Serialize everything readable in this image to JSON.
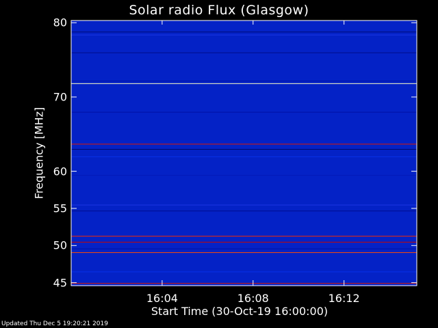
{
  "chart_data": {
    "type": "heatmap",
    "title": "Solar radio Flux (Glasgow)",
    "xlabel": "Start Time (30-Oct-19 16:00:00)",
    "ylabel": "Frequency [MHz]",
    "x_unit": "minutes after 16:00:00",
    "xlim": [
      0,
      15.2
    ],
    "ylim": [
      80.3,
      44.6
    ],
    "x_ticks": [
      {
        "value": 4,
        "label": "16:04"
      },
      {
        "value": 8,
        "label": "16:08"
      },
      {
        "value": 12,
        "label": "16:12"
      }
    ],
    "y_ticks": [
      {
        "value": 45,
        "label": "45"
      },
      {
        "value": 50,
        "label": "50"
      },
      {
        "value": 55,
        "label": "55"
      },
      {
        "value": 60,
        "label": "60"
      },
      {
        "value": 70,
        "label": "70"
      },
      {
        "value": 80,
        "label": "80"
      }
    ],
    "colormap": [
      "#000020",
      "#0010a0",
      "#0a3cff",
      "#c00000",
      "#ff3000",
      "#ff8000",
      "#ffff80",
      "#ffffff"
    ],
    "background_intensity": 0.2,
    "bands": [
      {
        "from": 44.6,
        "to": 46.5,
        "intensity": 0.08
      },
      {
        "from": 44.95,
        "to": 45.15,
        "intensity": 0.5
      },
      {
        "from": 46.5,
        "to": 49.0,
        "intensity": 0.25
      },
      {
        "from": 49.1,
        "to": 49.6,
        "intensity": 0.62
      },
      {
        "from": 49.6,
        "to": 50.5,
        "intensity": 0.15
      },
      {
        "from": 50.5,
        "to": 51.3,
        "intensity": 0.45
      },
      {
        "from": 51.3,
        "to": 54.7,
        "intensity": 0.55
      },
      {
        "from": 54.7,
        "to": 55.5,
        "intensity": 0.12
      },
      {
        "from": 55.5,
        "to": 59.5,
        "intensity": 0.3
      },
      {
        "from": 59.5,
        "to": 62.0,
        "intensity": 0.18
      },
      {
        "from": 62.0,
        "to": 63.0,
        "intensity": 0.25
      },
      {
        "from": 63.0,
        "to": 63.4,
        "intensity": 0.08
      },
      {
        "from": 63.7,
        "to": 64.1,
        "intensity": 0.5
      },
      {
        "from": 64.1,
        "to": 68.0,
        "intensity": 0.2
      },
      {
        "from": 68.0,
        "to": 71.6,
        "intensity": 0.15
      },
      {
        "from": 71.85,
        "to": 72.15,
        "intensity": 0.93
      },
      {
        "from": 72.2,
        "to": 76.0,
        "intensity": 0.16
      },
      {
        "from": 76.0,
        "to": 77.8,
        "intensity": 0.12
      },
      {
        "from": 78.4,
        "to": 78.8,
        "intensity": 0.3
      },
      {
        "from": 78.8,
        "to": 80.3,
        "intensity": 0.1
      }
    ],
    "grid": false,
    "legend": "none"
  },
  "footer": {
    "updated": "Updated Thu Dec  5 19:20:21 2019"
  }
}
